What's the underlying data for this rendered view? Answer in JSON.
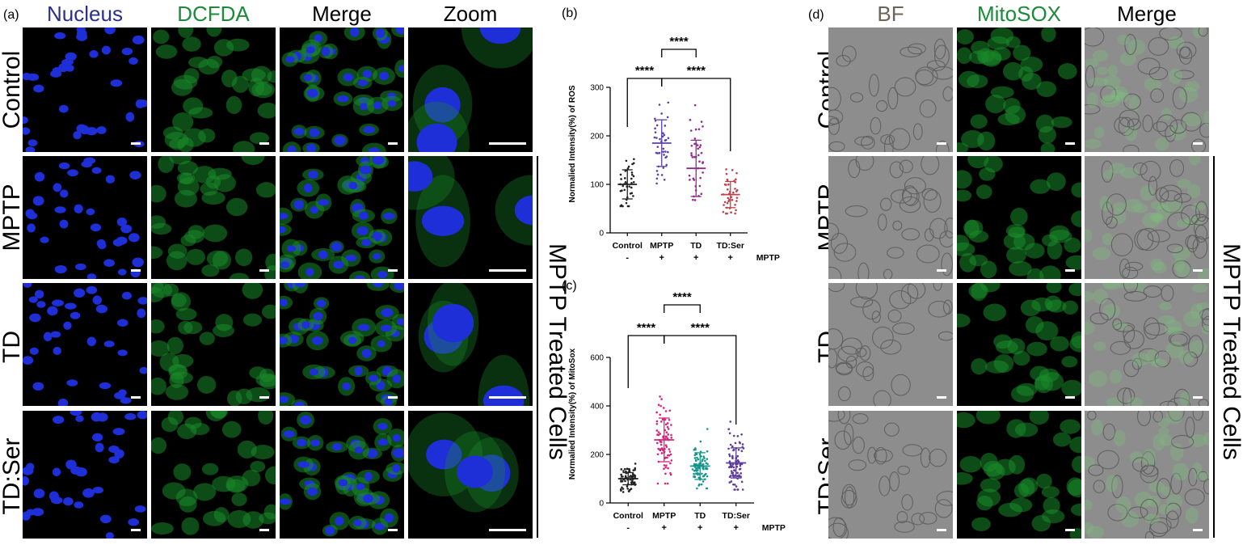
{
  "colors": {
    "nucleus": "#2b2f8f",
    "dcfda": "#1d8a3a",
    "bf": "#6d6458",
    "mitosox": "#1d8a3a",
    "black": "#000000",
    "control_pt": "#222222",
    "mptp_pt_b": "#5a3fa8",
    "td_pt_b": "#8e2a8e",
    "tdser_pt_b": "#c0404a",
    "mptp_pt_c": "#d6247a",
    "td_pt_c": "#13958a",
    "tdser_pt_c": "#5a3a9a"
  },
  "panel_a": {
    "letter": "(a)",
    "columns": [
      "Nucleus",
      "DCFDA",
      "Merge",
      "Zoom"
    ],
    "rows": [
      "Control",
      "MPTP",
      "TD",
      "TD:Ser"
    ],
    "side_label": "MPTP Treated Cells"
  },
  "panel_d": {
    "letter": "(d)",
    "columns": [
      "BF",
      "MitoSOX",
      "Merge"
    ],
    "rows": [
      "Control",
      "MPTP",
      "TD",
      "TD:Ser"
    ],
    "side_label": "MPTP Treated Cells"
  },
  "chart_b": {
    "letter": "(b)",
    "type": "scatter",
    "ylabel": "Normalied Intensity(%) of ROS",
    "ylim": [
      0,
      300
    ],
    "yticks": [
      "0",
      "100",
      "200",
      "300"
    ],
    "categories": [
      "Control",
      "MPTP",
      "TD",
      "TD:Ser"
    ],
    "signs": [
      "-",
      "+",
      "+",
      "+"
    ],
    "sign_label": "MPTP",
    "significance": [
      "****",
      "****",
      "****"
    ],
    "series": [
      {
        "category": "Control",
        "mean": 100,
        "sd": 30,
        "n": 40,
        "min": 55,
        "max": 185
      },
      {
        "category": "MPTP",
        "mean": 185,
        "sd": 48,
        "n": 40,
        "min": 85,
        "max": 280
      },
      {
        "category": "TD",
        "mean": 133,
        "sd": 58,
        "n": 40,
        "min": 40,
        "max": 265
      },
      {
        "category": "TD:Ser",
        "mean": 79,
        "sd": 27,
        "n": 40,
        "min": 40,
        "max": 145
      }
    ]
  },
  "chart_c": {
    "letter": "(c)",
    "type": "scatter",
    "ylabel": "Normalied Intensity(%) of MitoSox",
    "ylim": [
      0,
      600
    ],
    "yticks": [
      "0",
      "200",
      "400",
      "600"
    ],
    "categories": [
      "Control",
      "MPTP",
      "TD",
      "TD:Ser"
    ],
    "signs": [
      "-",
      "+",
      "+",
      "+"
    ],
    "sign_label": "MPTP",
    "significance": [
      "****",
      "****",
      "****"
    ],
    "series": [
      {
        "category": "Control",
        "mean": 100,
        "sd": 25,
        "n": 70,
        "min": 45,
        "max": 165
      },
      {
        "category": "MPTP",
        "mean": 260,
        "sd": 90,
        "n": 80,
        "min": 80,
        "max": 505
      },
      {
        "category": "TD",
        "mean": 152,
        "sd": 55,
        "n": 80,
        "min": 60,
        "max": 305
      },
      {
        "category": "TD:Ser",
        "mean": 165,
        "sd": 62,
        "n": 80,
        "min": 55,
        "max": 360
      }
    ]
  }
}
